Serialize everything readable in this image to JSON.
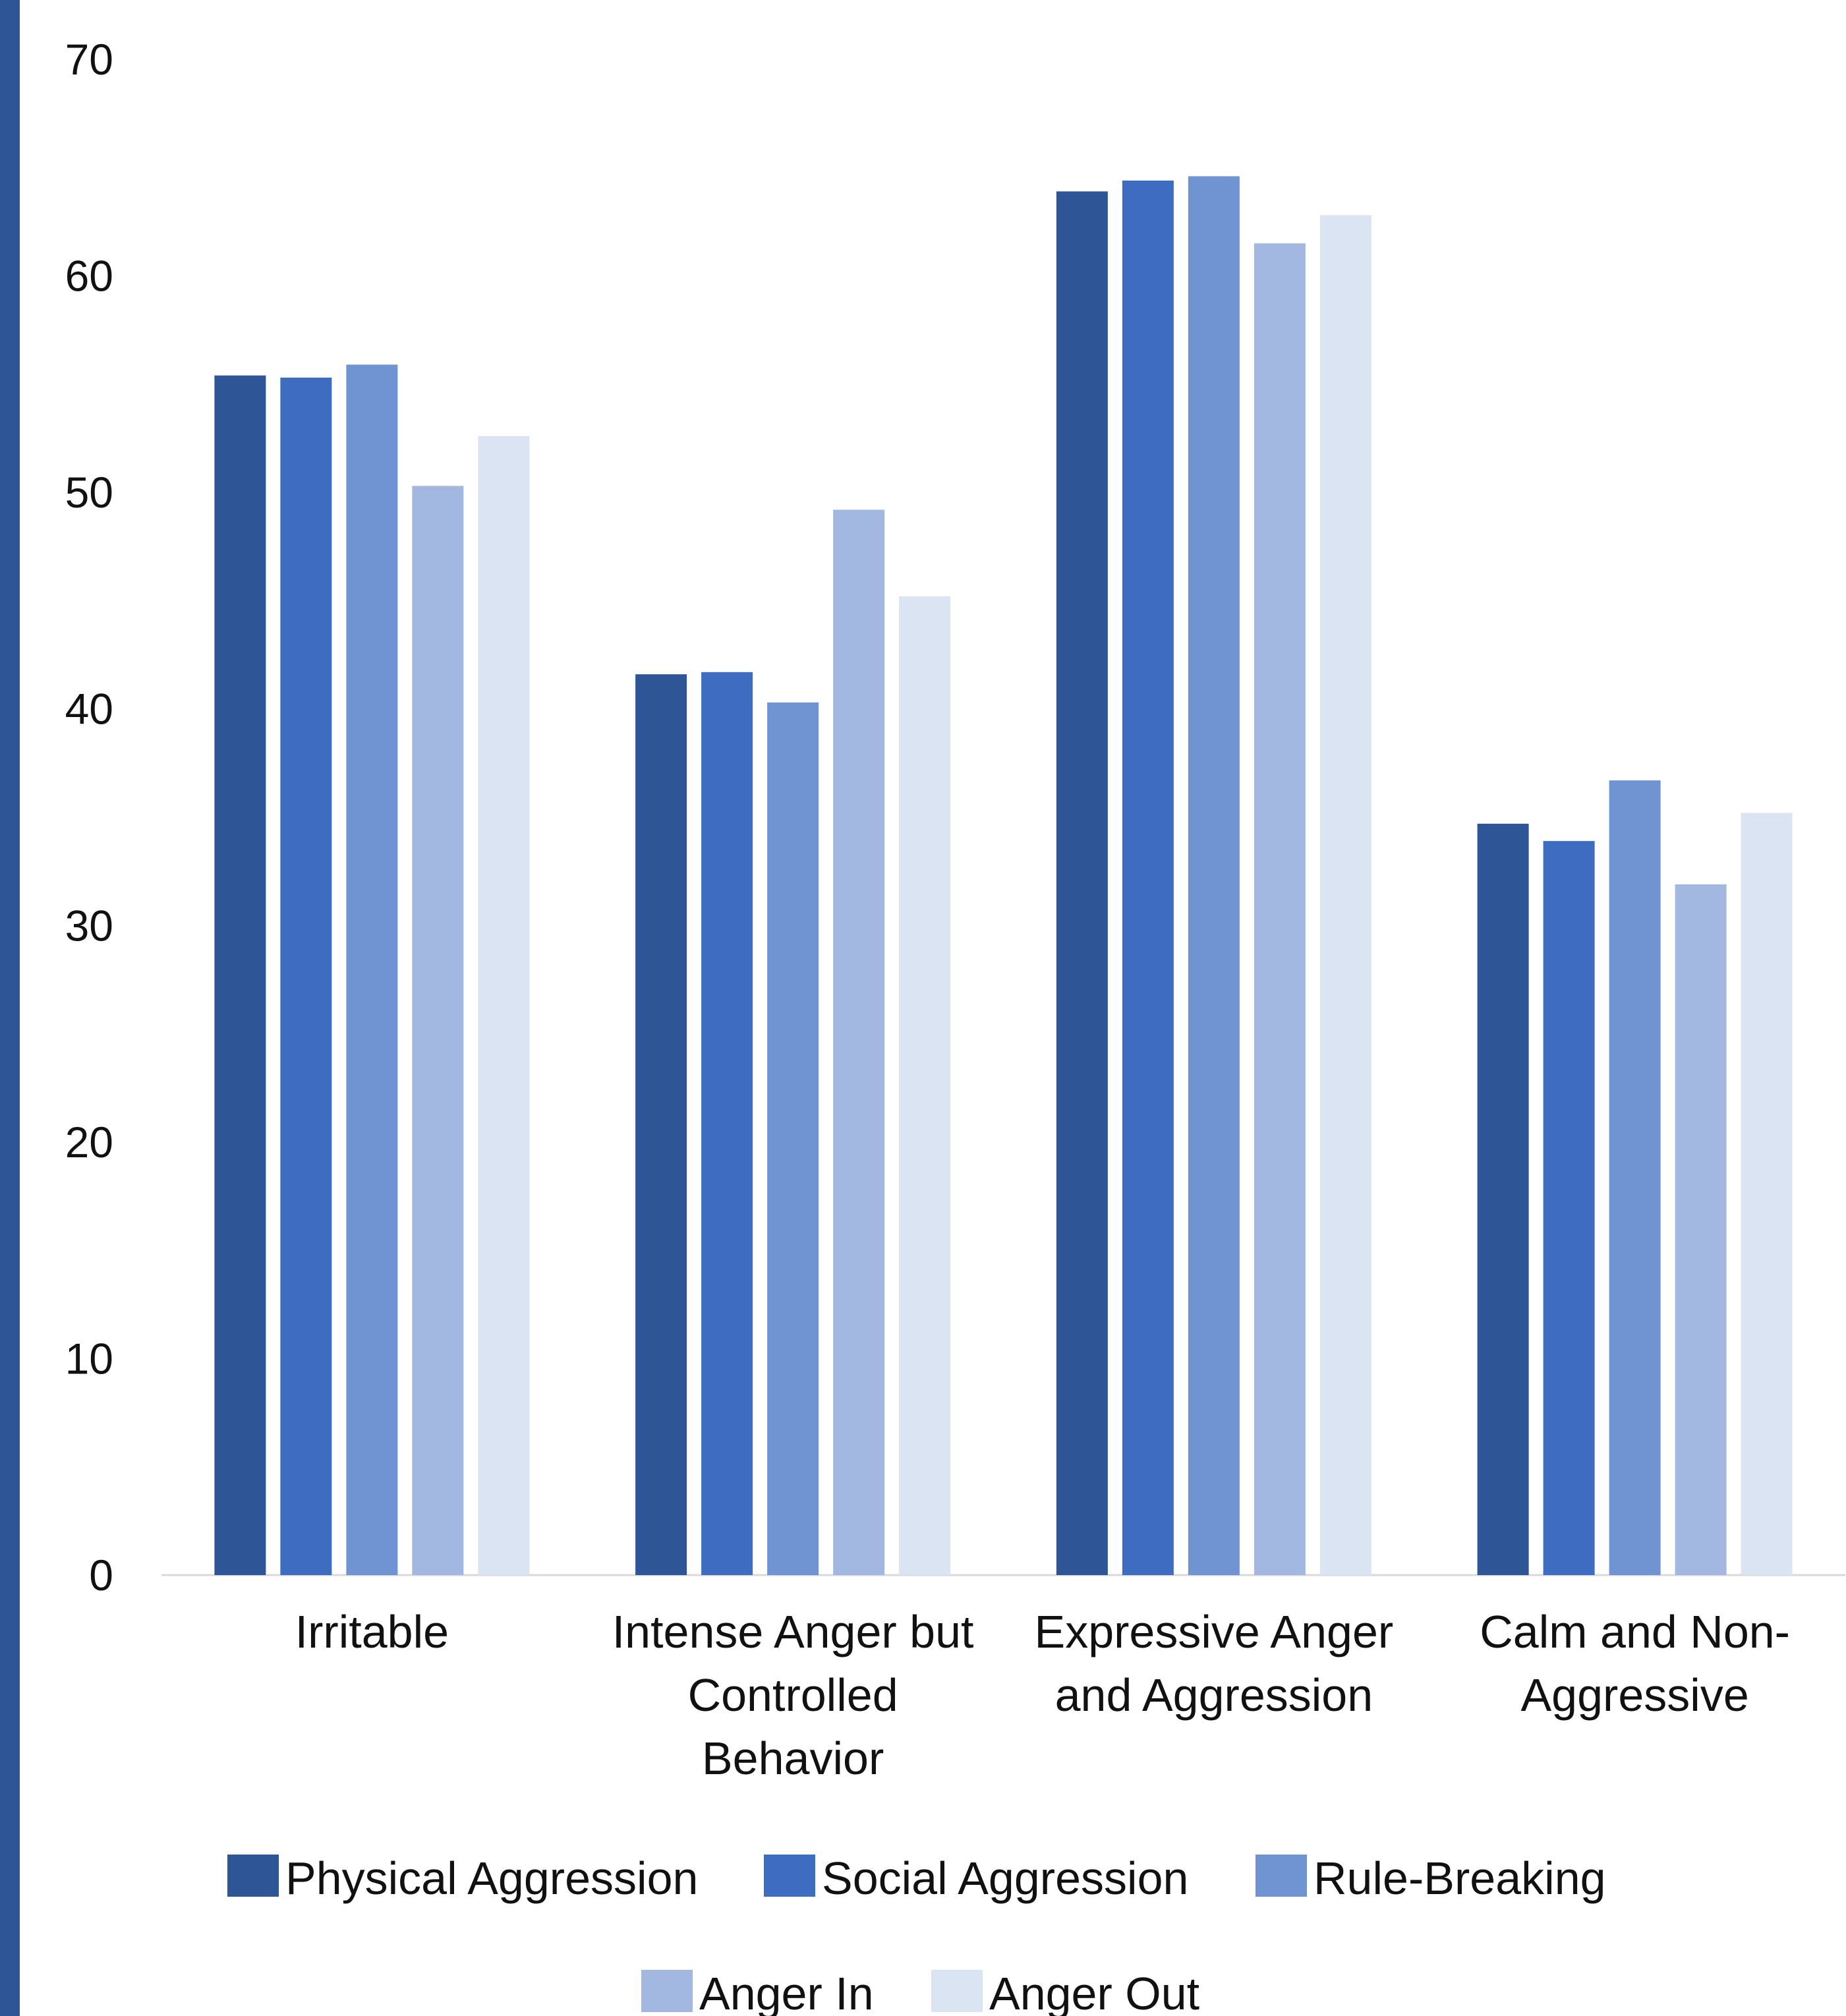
{
  "chart_data": {
    "type": "bar",
    "title": "",
    "xlabel": "",
    "ylabel": "",
    "ylim": [
      0,
      70
    ],
    "yticks": [
      0,
      10,
      20,
      30,
      40,
      50,
      60,
      70
    ],
    "grid": false,
    "legend_position": "bottom",
    "categories": [
      [
        "Irritable"
      ],
      [
        "Intense Anger but",
        "Controlled",
        "Behavior"
      ],
      [
        "Expressive Anger",
        "and Aggression"
      ],
      [
        "Calm and Non-",
        "Aggressive"
      ]
    ],
    "series": [
      {
        "name": "Physical Aggression",
        "color": "#2e5596",
        "values": [
          55.4,
          41.6,
          63.9,
          34.7
        ]
      },
      {
        "name": "Social Aggression",
        "color": "#3e6cc0",
        "values": [
          55.3,
          41.7,
          64.4,
          33.9
        ]
      },
      {
        "name": "Rule-Breaking",
        "color": "#7094d2",
        "values": [
          55.9,
          40.3,
          64.6,
          36.7
        ]
      },
      {
        "name": "Anger In",
        "color": "#a2b8e1",
        "values": [
          50.3,
          49.2,
          61.5,
          31.9
        ]
      },
      {
        "name": "Anger Out",
        "color": "#dbe4f3",
        "values": [
          52.6,
          45.2,
          62.8,
          35.2
        ]
      }
    ],
    "accent_color": "#2e5596"
  }
}
